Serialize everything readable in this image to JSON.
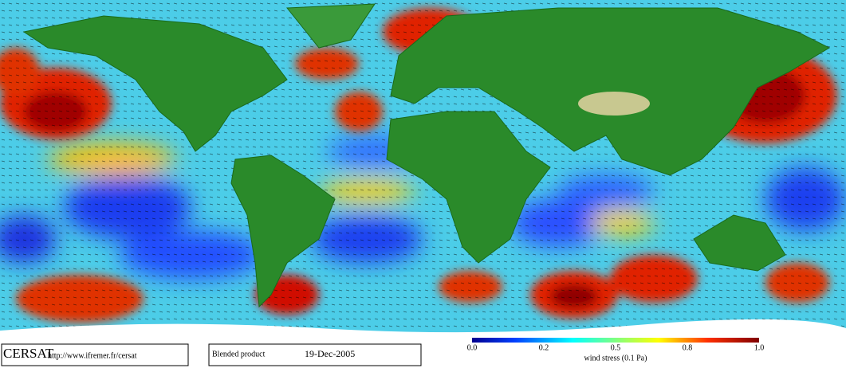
{
  "logo": "CERSAT",
  "url": "http://www.ifremer.fr/cersat",
  "product": "Blended product",
  "date": "19-Dec-2005",
  "colorbar": {
    "label": "wind stress (0.1 Pa)",
    "ticks": [
      "0.0",
      "0.2",
      "0.5",
      "0.8",
      "1.0"
    ]
  }
}
